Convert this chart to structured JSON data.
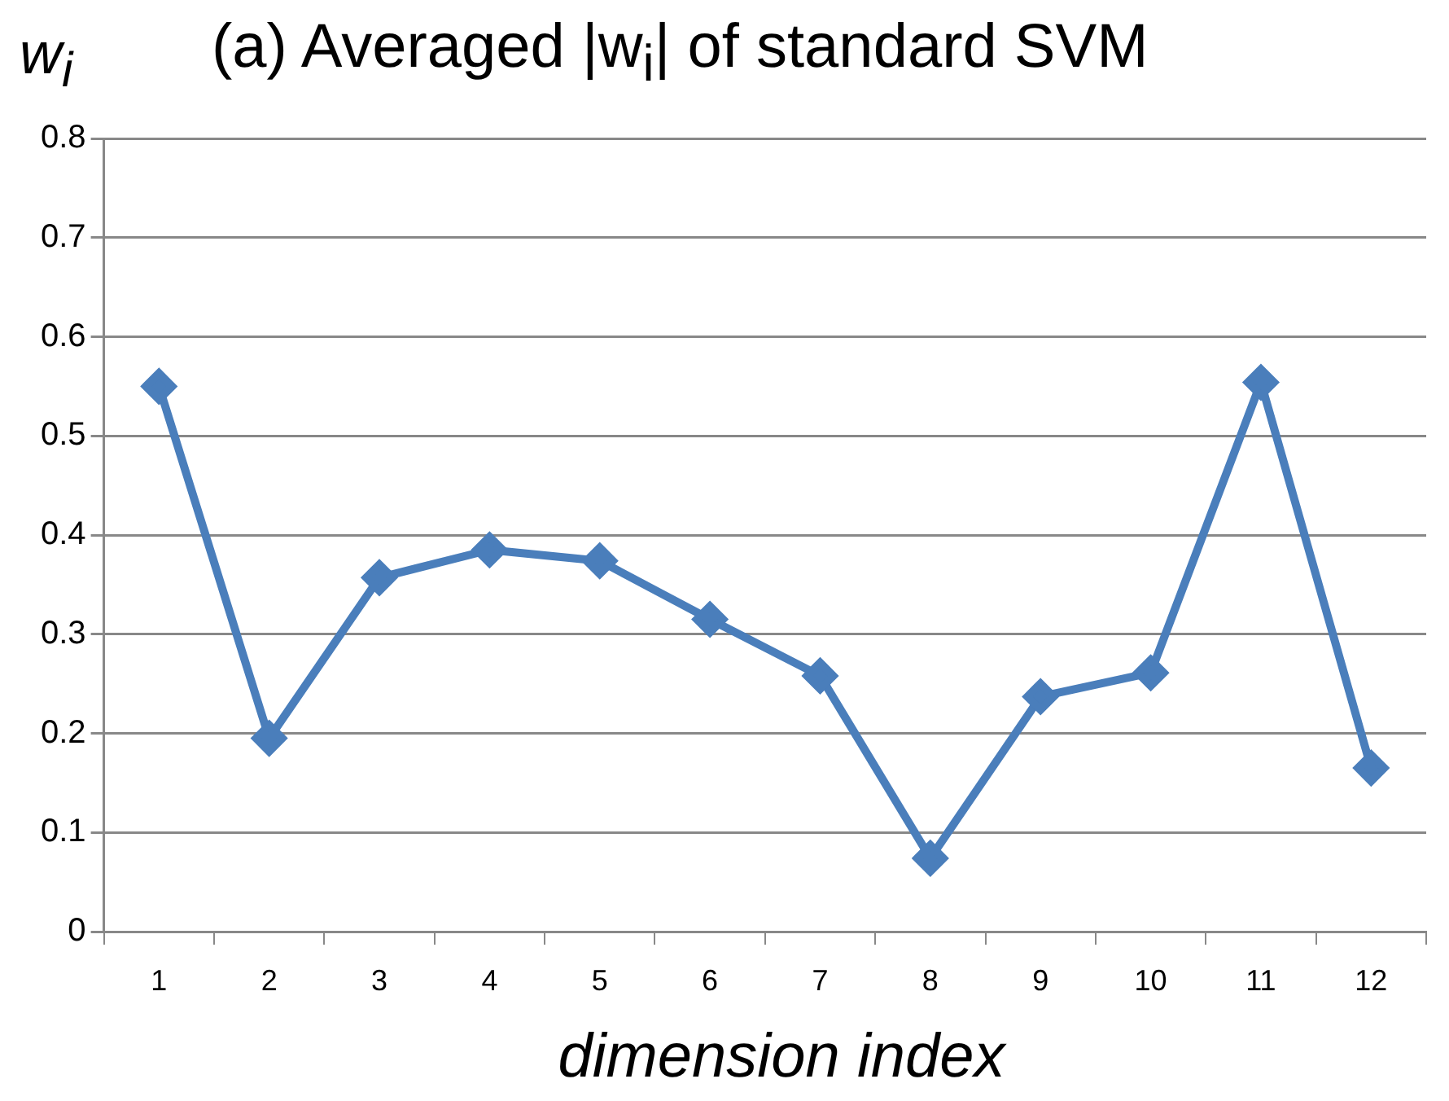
{
  "chart_data": {
    "type": "line",
    "title": "(a) Averaged |w$_{i}$| of standard SVM",
    "ylabel": "w$_{i}$",
    "xlabel": "dimension index",
    "categories": [
      "1",
      "2",
      "3",
      "4",
      "5",
      "6",
      "7",
      "8",
      "9",
      "10",
      "11",
      "12"
    ],
    "series": [
      {
        "color": "#4a7ebb",
        "values": [
          0.55,
          0.195,
          0.357,
          0.385,
          0.374,
          0.315,
          0.258,
          0.074,
          0.237,
          0.261,
          0.554,
          0.165
        ]
      }
    ],
    "ylim": [
      0,
      0.8
    ],
    "yticks": [
      0,
      0.1,
      0.2,
      0.3,
      0.4,
      0.5,
      0.6,
      0.7,
      0.8
    ],
    "grid": "y",
    "legend": false,
    "marker": "diamond",
    "line_style": "solid"
  }
}
